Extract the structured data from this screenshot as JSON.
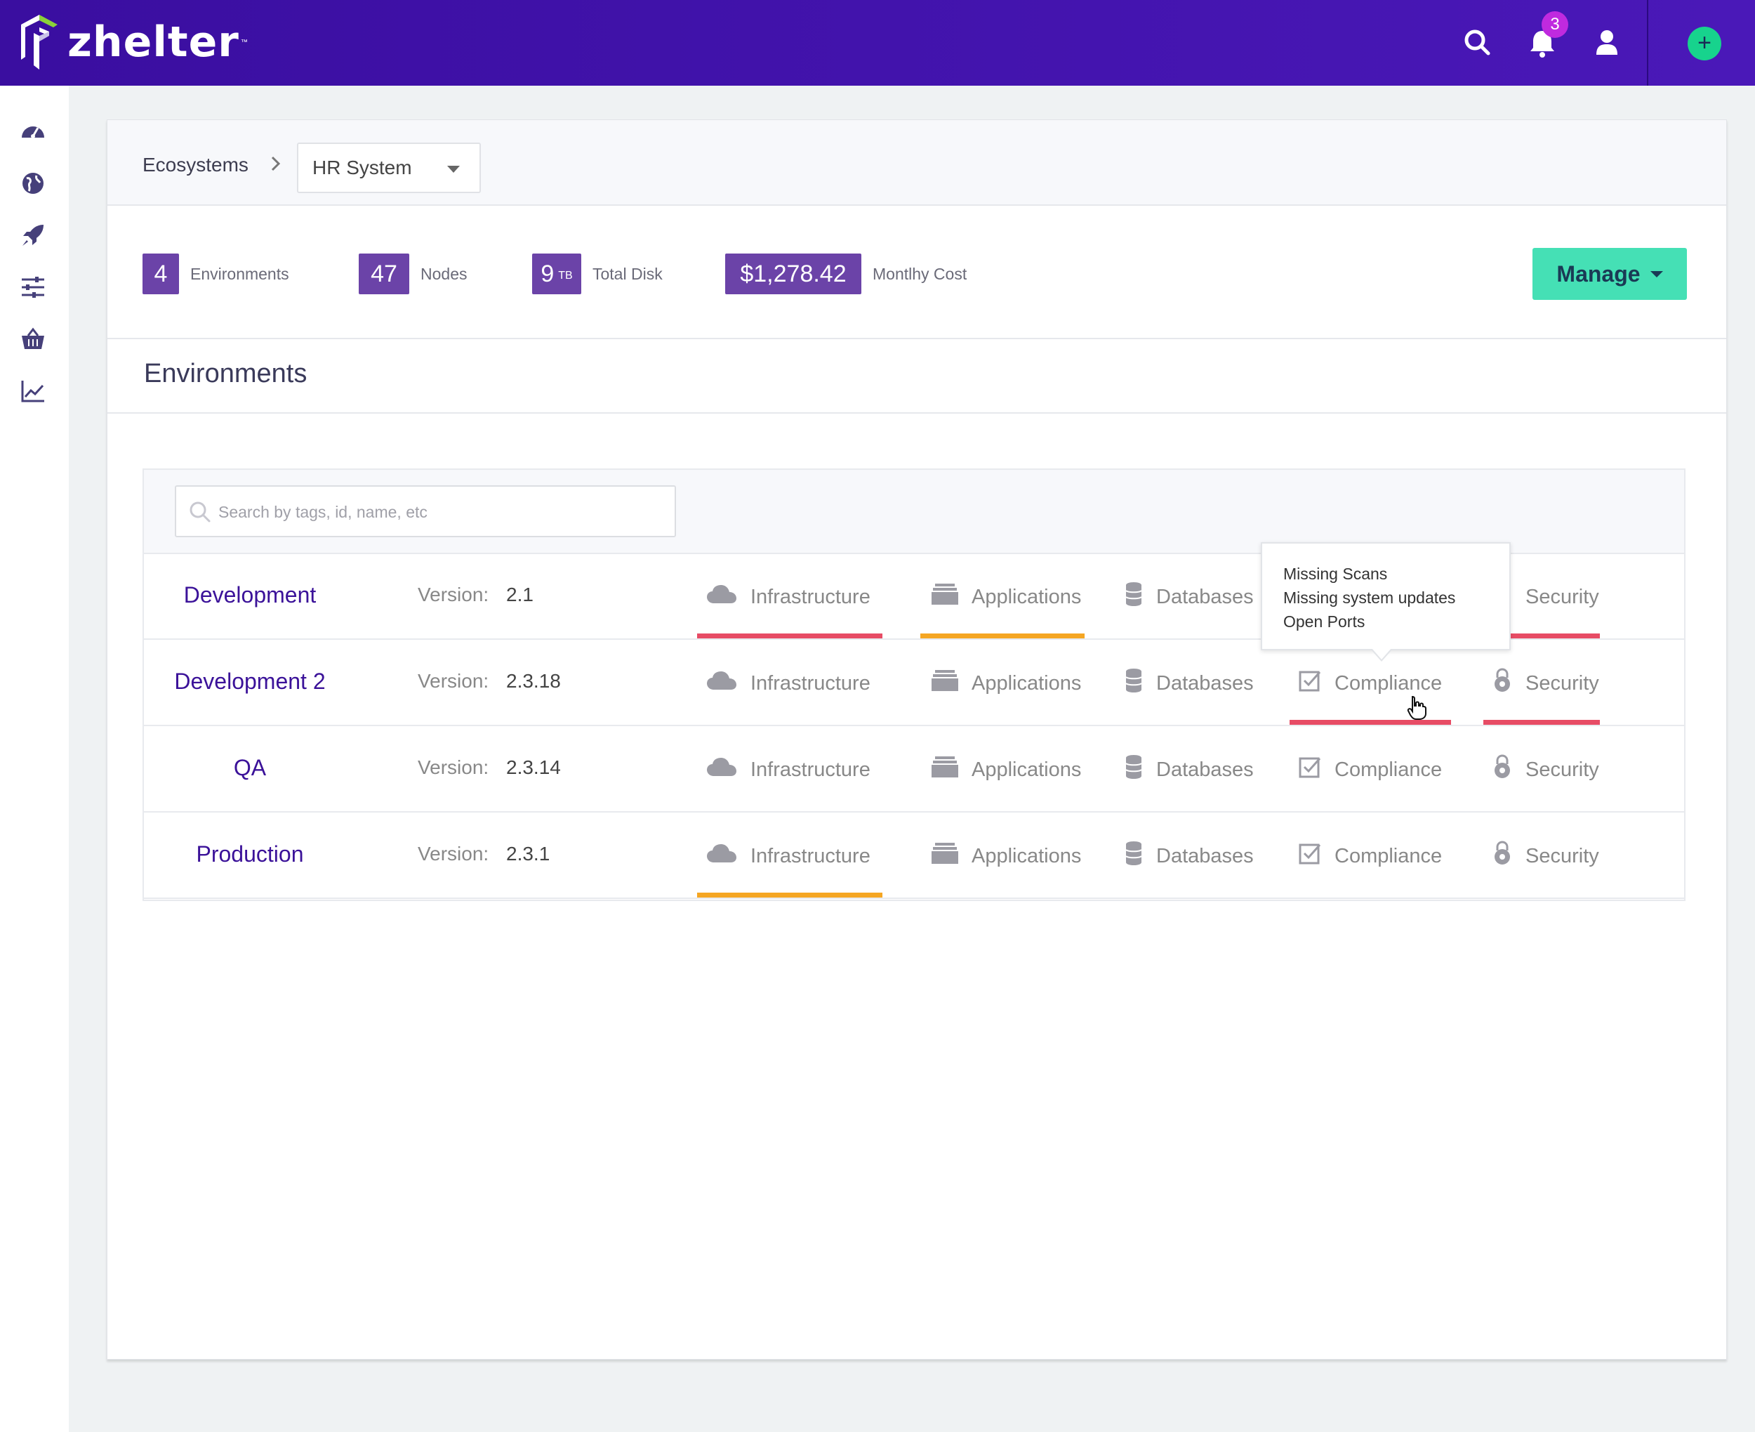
{
  "app": {
    "brand": "zhelter",
    "notifications_count": "3",
    "add_symbol": "+"
  },
  "colors": {
    "topbar": "#3a0ea0",
    "accent_purple": "#6b43a8",
    "manage": "#45e0b5",
    "add": "#17d38d",
    "badge": "#c02adf",
    "status_red": "#e74c65",
    "status_orange": "#f5a623",
    "env_name": "#3b1299"
  },
  "sidebar": {
    "items": [
      {
        "icon": "dashboard-icon"
      },
      {
        "icon": "globe-icon"
      },
      {
        "icon": "rocket-icon"
      },
      {
        "icon": "sliders-icon"
      },
      {
        "icon": "basket-icon"
      },
      {
        "icon": "chart-line-icon"
      }
    ]
  },
  "breadcrumb": {
    "root": "Ecosystems",
    "selected": "HR System"
  },
  "stats": {
    "environments": {
      "value": "4",
      "label": "Environments"
    },
    "nodes": {
      "value": "47",
      "label": "Nodes"
    },
    "disk": {
      "value": "9",
      "unit": "TB",
      "label": "Total Disk"
    },
    "cost": {
      "value": "$1,278.42",
      "label": "Montlhy Cost"
    }
  },
  "manage_label": "Manage",
  "section_title": "Environments",
  "search": {
    "placeholder": "Search by tags, id, name, etc"
  },
  "version_label": "Version:",
  "categories": [
    "Infrastructure",
    "Applications",
    "Databases",
    "Compliance",
    "Security"
  ],
  "environments": [
    {
      "name": "Development",
      "version": "2.1",
      "status": {
        "Infrastructure": "red",
        "Applications": "orange",
        "Security": "red"
      }
    },
    {
      "name": "Development 2",
      "version": "2.3.18",
      "status": {
        "Compliance": "red",
        "Security": "red"
      }
    },
    {
      "name": "QA",
      "version": "2.3.14",
      "status": {}
    },
    {
      "name": "Production",
      "version": "2.3.1",
      "status": {
        "Infrastructure": "orange"
      }
    }
  ],
  "tooltip": {
    "lines": [
      "Missing Scans",
      "Missing system updates",
      "Open Ports"
    ]
  }
}
